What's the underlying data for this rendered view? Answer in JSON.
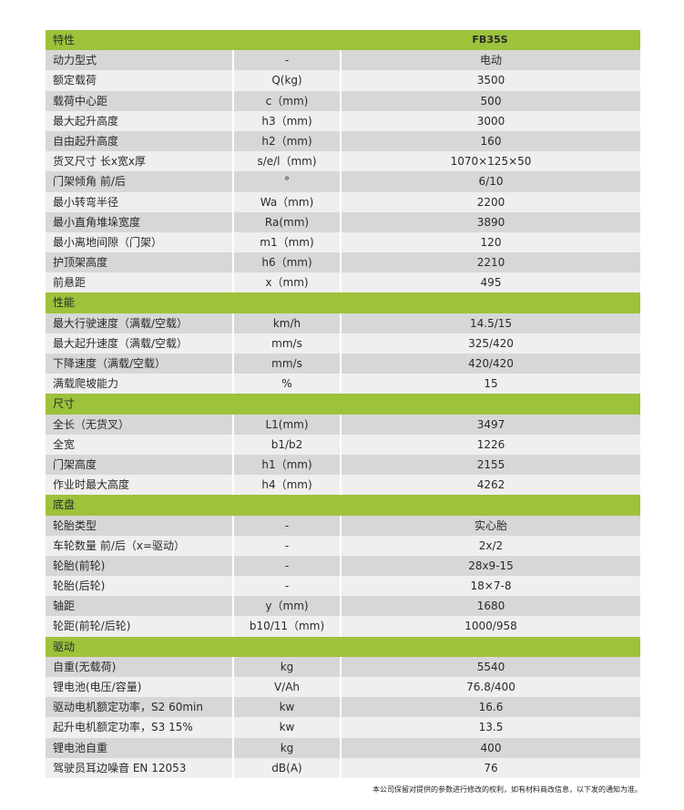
{
  "colors": {
    "header": "#9dc23b",
    "row_dark": "#d7d7d7",
    "row_light": "#efefef"
  },
  "sections": [
    {
      "title": "特性",
      "model": "FB35S",
      "rows": [
        [
          "动力型式",
          "-",
          "电动"
        ],
        [
          "额定载荷",
          "Q(kg)",
          "3500"
        ],
        [
          "载荷中心距",
          "c（mm)",
          "500"
        ],
        [
          "最大起升高度",
          "h3（mm)",
          "3000"
        ],
        [
          "自由起升高度",
          "h2（mm)",
          "160"
        ],
        [
          "货叉尺寸 长x宽x厚",
          "s/e/l（mm)",
          "1070×125×50"
        ],
        [
          "门架倾角 前/后",
          "°",
          "6/10"
        ],
        [
          "最小转弯半径",
          "Wa（mm)",
          "2200"
        ],
        [
          "最小直角堆垛宽度",
          "Ra(mm)",
          "3890"
        ],
        [
          "最小离地间隙（门架）",
          "m1（mm)",
          "120"
        ],
        [
          "护顶架高度",
          "h6（mm)",
          "2210"
        ],
        [
          "前悬距",
          "x（mm)",
          "495"
        ]
      ]
    },
    {
      "title": "性能",
      "model": "",
      "rows": [
        [
          "最大行驶速度（满载/空载）",
          "km/h",
          "14.5/15"
        ],
        [
          "最大起升速度（满载/空载）",
          "mm/s",
          "325/420"
        ],
        [
          "下降速度（满载/空载）",
          "mm/s",
          "420/420"
        ],
        [
          "满载爬坡能力",
          "%",
          "15"
        ]
      ]
    },
    {
      "title": "尺寸",
      "model": "",
      "rows": [
        [
          "全长（无货叉）",
          "L1(mm)",
          "3497"
        ],
        [
          "全宽",
          "b1/b2",
          "1226"
        ],
        [
          "门架高度",
          "h1（mm)",
          "2155"
        ],
        [
          "作业时最大高度",
          "h4（mm)",
          "4262"
        ]
      ]
    },
    {
      "title": "底盘",
      "model": "",
      "rows": [
        [
          "轮胎类型",
          "-",
          "实心胎"
        ],
        [
          "车轮数量 前/后（x=驱动）",
          "-",
          "2x/2"
        ],
        [
          "轮胎(前轮)",
          "-",
          "28x9-15"
        ],
        [
          "轮胎(后轮)",
          "-",
          "18×7-8"
        ],
        [
          "轴距",
          "y（mm)",
          "1680"
        ],
        [
          "轮距(前轮/后轮)",
          "b10/11（mm)",
          "1000/958"
        ]
      ]
    },
    {
      "title": "驱动",
      "model": "",
      "rows": [
        [
          "自重(无载荷)",
          "kg",
          "5540"
        ],
        [
          "锂电池(电压/容量)",
          "V/Ah",
          "76.8/400"
        ],
        [
          "驱动电机额定功率，S2 60min",
          "kw",
          "16.6"
        ],
        [
          "起升电机额定功率，S3 15%",
          "kw",
          "13.5"
        ],
        [
          "锂电池自重",
          "kg",
          "400"
        ],
        [
          "驾驶员耳边噪音 EN 12053",
          "dB(A)",
          "76"
        ]
      ]
    }
  ],
  "footnote": "本公司保留对提供的参数进行修改的权利，如有材料商改信息，以下发的通知为准。"
}
